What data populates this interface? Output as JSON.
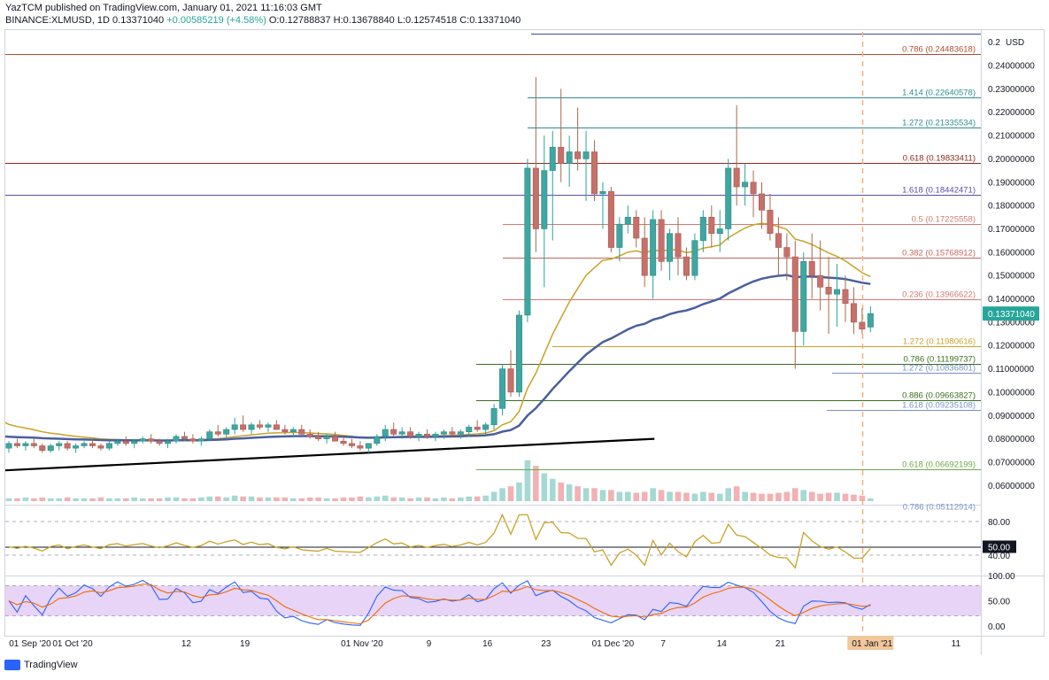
{
  "header": {
    "line1": "YazTCM published on TradingView.com, January 01, 2021 11:16:03 GMT",
    "symbol": "BINANCE:XLMUSD, 1D",
    "last": "0.13371040",
    "change": "+0.00585219 (+4.58%)",
    "open": "O:0.12788837",
    "high": "H:0.13678840",
    "low": "L:0.12574518",
    "close": "C:0.13371040"
  },
  "footer": {
    "brand": "TradingView"
  },
  "chart_data": {
    "type": "candlestick",
    "currency": "USD",
    "price_axis_unit": "USD",
    "price_range": [
      0.05,
      0.25
    ],
    "price_ticks": [
      "0.24000000",
      "0.23000000",
      "0.22000000",
      "0.21000000",
      "0.20000000",
      "0.19000000",
      "0.18000000",
      "0.17000000",
      "0.16000000",
      "0.15000000",
      "0.14000000",
      "0.13000000",
      "0.12000000",
      "0.11000000",
      "0.10000000",
      "0.09000000",
      "0.08000000",
      "0.07000000",
      "0.06000000"
    ],
    "price_ticks_top_partial": "0.2",
    "price_tag": "0.13371040",
    "x_labels": [
      {
        "label": "01 Sep '20",
        "i": 0
      },
      {
        "label": "01 Oct '20",
        "i": 6
      },
      {
        "label": "12",
        "i": 21
      },
      {
        "label": "19",
        "i": 28
      },
      {
        "label": "01 Nov '20",
        "i": 42
      },
      {
        "label": "9",
        "i": 50
      },
      {
        "label": "16",
        "i": 57
      },
      {
        "label": "23",
        "i": 64
      },
      {
        "label": "01 Dec '20",
        "i": 72
      },
      {
        "label": "7",
        "i": 78
      },
      {
        "label": "14",
        "i": 85
      },
      {
        "label": "21",
        "i": 92
      },
      {
        "label": "01 Jan '21",
        "i": 103
      },
      {
        "label": "11",
        "i": 113
      }
    ],
    "fib_levels": [
      {
        "label": "0.786 (0.24483618)",
        "value": 0.24483618,
        "color": "#b24d2e"
      },
      {
        "label": "1.414 (0.22640578)",
        "value": 0.22640578,
        "color": "#2e8c95"
      },
      {
        "label": "1.272 (0.21335534)",
        "value": 0.21335534,
        "color": "#2e8c95"
      },
      {
        "label": "0.618 (0.19833411)",
        "value": 0.19833411,
        "color": "#8c2a1a"
      },
      {
        "label": "1.618 (0.18442471)",
        "value": 0.18442471,
        "color": "#5a4fa8"
      },
      {
        "label": "0.5 (0.17225558)",
        "value": 0.17225558,
        "color": "#d47a72"
      },
      {
        "label": "0.382 (0.15768912)",
        "value": 0.15768912,
        "color": "#c5665e"
      },
      {
        "label": "0.236 (0.13966622)",
        "value": 0.13966622,
        "color": "#d47a72"
      },
      {
        "label": "1.272 (0.11980616)",
        "value": 0.11980616,
        "color": "#c9a227"
      },
      {
        "label": "0.786 (0.11199737)",
        "value": 0.11199737,
        "color": "#3c6e1f"
      },
      {
        "label": "1.272 (0.10836801)",
        "value": 0.10836801,
        "color": "#7a90c8"
      },
      {
        "label": "0.886 (0.09663827)",
        "value": 0.09663827,
        "color": "#3c6e1f"
      },
      {
        "label": "1.618 (0.09235108)",
        "value": 0.09235108,
        "color": "#7a90c8"
      },
      {
        "label": "0.618 (0.06692199)",
        "value": 0.06692199,
        "color": "#6fa84b"
      },
      {
        "label": "0.786 (0.05112914)",
        "value": 0.05112914,
        "color": "#7a90c8"
      }
    ],
    "candles": [
      [
        0.076,
        0.079,
        0.074,
        0.078
      ],
      [
        0.078,
        0.08,
        0.076,
        0.077
      ],
      [
        0.077,
        0.079,
        0.075,
        0.078
      ],
      [
        0.078,
        0.08,
        0.076,
        0.077
      ],
      [
        0.077,
        0.078,
        0.074,
        0.075
      ],
      [
        0.075,
        0.078,
        0.074,
        0.077
      ],
      [
        0.077,
        0.079,
        0.075,
        0.078
      ],
      [
        0.078,
        0.079,
        0.075,
        0.076
      ],
      [
        0.076,
        0.078,
        0.074,
        0.077
      ],
      [
        0.077,
        0.079,
        0.076,
        0.078
      ],
      [
        0.078,
        0.08,
        0.076,
        0.077
      ],
      [
        0.077,
        0.078,
        0.075,
        0.076
      ],
      [
        0.076,
        0.079,
        0.075,
        0.078
      ],
      [
        0.078,
        0.08,
        0.077,
        0.079
      ],
      [
        0.079,
        0.081,
        0.077,
        0.078
      ],
      [
        0.078,
        0.08,
        0.076,
        0.079
      ],
      [
        0.079,
        0.081,
        0.078,
        0.08
      ],
      [
        0.08,
        0.082,
        0.078,
        0.079
      ],
      [
        0.079,
        0.08,
        0.077,
        0.078
      ],
      [
        0.078,
        0.08,
        0.076,
        0.079
      ],
      [
        0.079,
        0.082,
        0.078,
        0.081
      ],
      [
        0.081,
        0.083,
        0.079,
        0.08
      ],
      [
        0.08,
        0.082,
        0.078,
        0.079
      ],
      [
        0.079,
        0.081,
        0.077,
        0.08
      ],
      [
        0.08,
        0.084,
        0.079,
        0.083
      ],
      [
        0.083,
        0.086,
        0.081,
        0.082
      ],
      [
        0.082,
        0.085,
        0.08,
        0.084
      ],
      [
        0.084,
        0.089,
        0.082,
        0.086
      ],
      [
        0.086,
        0.09,
        0.083,
        0.084
      ],
      [
        0.084,
        0.087,
        0.082,
        0.086
      ],
      [
        0.086,
        0.088,
        0.084,
        0.085
      ],
      [
        0.085,
        0.087,
        0.083,
        0.086
      ],
      [
        0.086,
        0.088,
        0.084,
        0.084
      ],
      [
        0.084,
        0.086,
        0.082,
        0.083
      ],
      [
        0.083,
        0.085,
        0.081,
        0.084
      ],
      [
        0.084,
        0.086,
        0.082,
        0.082
      ],
      [
        0.082,
        0.084,
        0.08,
        0.081
      ],
      [
        0.081,
        0.083,
        0.079,
        0.08
      ],
      [
        0.08,
        0.082,
        0.078,
        0.081
      ],
      [
        0.081,
        0.083,
        0.079,
        0.079
      ],
      [
        0.079,
        0.081,
        0.077,
        0.078
      ],
      [
        0.078,
        0.08,
        0.076,
        0.077
      ],
      [
        0.077,
        0.079,
        0.075,
        0.076
      ],
      [
        0.076,
        0.078,
        0.074,
        0.078
      ],
      [
        0.078,
        0.082,
        0.077,
        0.081
      ],
      [
        0.081,
        0.086,
        0.079,
        0.084
      ],
      [
        0.084,
        0.087,
        0.081,
        0.082
      ],
      [
        0.082,
        0.085,
        0.08,
        0.083
      ],
      [
        0.083,
        0.085,
        0.08,
        0.081
      ],
      [
        0.081,
        0.083,
        0.079,
        0.082
      ],
      [
        0.082,
        0.084,
        0.08,
        0.081
      ],
      [
        0.081,
        0.083,
        0.079,
        0.082
      ],
      [
        0.082,
        0.084,
        0.08,
        0.083
      ],
      [
        0.083,
        0.085,
        0.081,
        0.082
      ],
      [
        0.082,
        0.084,
        0.08,
        0.083
      ],
      [
        0.083,
        0.086,
        0.081,
        0.085
      ],
      [
        0.085,
        0.088,
        0.083,
        0.084
      ],
      [
        0.084,
        0.087,
        0.082,
        0.086
      ],
      [
        0.086,
        0.095,
        0.084,
        0.093
      ],
      [
        0.093,
        0.112,
        0.09,
        0.11
      ],
      [
        0.11,
        0.118,
        0.098,
        0.1
      ],
      [
        0.1,
        0.135,
        0.098,
        0.133
      ],
      [
        0.133,
        0.2,
        0.13,
        0.196
      ],
      [
        0.196,
        0.235,
        0.16,
        0.17
      ],
      [
        0.17,
        0.21,
        0.145,
        0.195
      ],
      [
        0.195,
        0.212,
        0.165,
        0.205
      ],
      [
        0.205,
        0.23,
        0.19,
        0.198
      ],
      [
        0.198,
        0.21,
        0.188,
        0.203
      ],
      [
        0.203,
        0.222,
        0.195,
        0.2
      ],
      [
        0.2,
        0.212,
        0.182,
        0.203
      ],
      [
        0.203,
        0.208,
        0.182,
        0.185
      ],
      [
        0.185,
        0.19,
        0.17,
        0.186
      ],
      [
        0.186,
        0.188,
        0.16,
        0.162
      ],
      [
        0.162,
        0.175,
        0.156,
        0.172
      ],
      [
        0.172,
        0.18,
        0.168,
        0.175
      ],
      [
        0.175,
        0.178,
        0.162,
        0.166
      ],
      [
        0.166,
        0.175,
        0.145,
        0.15
      ],
      [
        0.15,
        0.178,
        0.14,
        0.174
      ],
      [
        0.174,
        0.178,
        0.152,
        0.156
      ],
      [
        0.156,
        0.17,
        0.148,
        0.168
      ],
      [
        0.168,
        0.175,
        0.15,
        0.158
      ],
      [
        0.158,
        0.162,
        0.148,
        0.15
      ],
      [
        0.15,
        0.168,
        0.148,
        0.165
      ],
      [
        0.165,
        0.178,
        0.16,
        0.175
      ],
      [
        0.175,
        0.18,
        0.162,
        0.168
      ],
      [
        0.168,
        0.178,
        0.16,
        0.17
      ],
      [
        0.17,
        0.2,
        0.165,
        0.196
      ],
      [
        0.196,
        0.223,
        0.18,
        0.188
      ],
      [
        0.188,
        0.198,
        0.18,
        0.19
      ],
      [
        0.19,
        0.195,
        0.175,
        0.185
      ],
      [
        0.185,
        0.19,
        0.17,
        0.178
      ],
      [
        0.178,
        0.185,
        0.165,
        0.168
      ],
      [
        0.168,
        0.175,
        0.15,
        0.162
      ],
      [
        0.162,
        0.168,
        0.148,
        0.158
      ],
      [
        0.158,
        0.165,
        0.11,
        0.126
      ],
      [
        0.126,
        0.16,
        0.12,
        0.156
      ],
      [
        0.156,
        0.168,
        0.14,
        0.15
      ],
      [
        0.15,
        0.165,
        0.135,
        0.145
      ],
      [
        0.145,
        0.158,
        0.125,
        0.142
      ],
      [
        0.142,
        0.155,
        0.128,
        0.144
      ],
      [
        0.144,
        0.15,
        0.13,
        0.138
      ],
      [
        0.138,
        0.145,
        0.125,
        0.13
      ],
      [
        0.13,
        0.136,
        0.125,
        0.127
      ],
      [
        0.1279,
        0.1368,
        0.1257,
        0.1337
      ]
    ],
    "volume": [
      3,
      3,
      4,
      3,
      4,
      3,
      3,
      4,
      3,
      3,
      3,
      4,
      3,
      3,
      3,
      4,
      3,
      3,
      3,
      4,
      4,
      3,
      3,
      4,
      5,
      5,
      4,
      6,
      5,
      5,
      4,
      4,
      4,
      4,
      3,
      3,
      4,
      4,
      3,
      3,
      4,
      4,
      5,
      4,
      5,
      6,
      4,
      4,
      3,
      4,
      4,
      3,
      4,
      3,
      4,
      5,
      5,
      6,
      10,
      14,
      16,
      20,
      44,
      38,
      30,
      24,
      20,
      18,
      16,
      14,
      14,
      12,
      12,
      10,
      10,
      9,
      10,
      14,
      12,
      10,
      10,
      9,
      8,
      10,
      9,
      8,
      14,
      16,
      10,
      9,
      8,
      8,
      9,
      10,
      14,
      12,
      10,
      8,
      9,
      9,
      8,
      7,
      6,
      3
    ],
    "ema_yellow_start": 0.087,
    "ma_blue_start": 0.081,
    "trendline": {
      "from": [
        0,
        0.0665
      ],
      "to": [
        74,
        0.08
      ]
    },
    "rsi": {
      "levels": [
        80,
        50,
        40
      ],
      "labels": [
        "80.00",
        "50.00",
        "40.00"
      ],
      "current_tag": "50.00"
    },
    "stoch_rsi": {
      "range": [
        0,
        100
      ],
      "labels": [
        "100.00",
        "50.00",
        "0.00"
      ]
    },
    "current_date_marker": "01 Jan '21"
  }
}
